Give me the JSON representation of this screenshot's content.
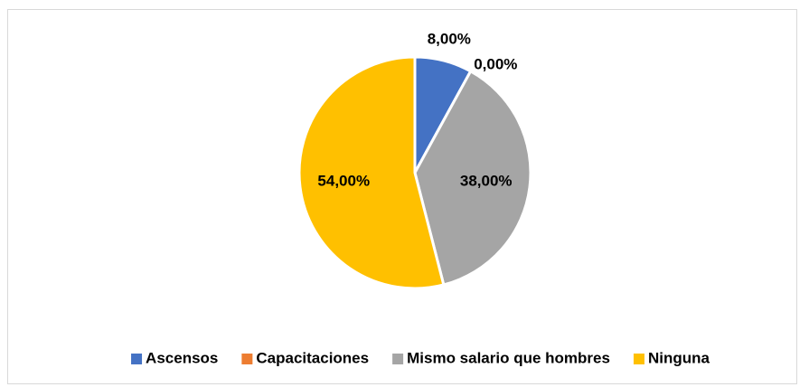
{
  "chart_data": {
    "type": "pie",
    "categories": [
      "Ascensos",
      "Capacitaciones",
      "Mismo salario que hombres",
      "Ninguna"
    ],
    "values": [
      8,
      0,
      38,
      54
    ],
    "value_labels": [
      "8,00%",
      "0,00%",
      "38,00%",
      "54,00%"
    ],
    "colors": [
      "#4472c4",
      "#ed7d31",
      "#a5a5a5",
      "#ffc000"
    ],
    "legend": "bottom"
  }
}
